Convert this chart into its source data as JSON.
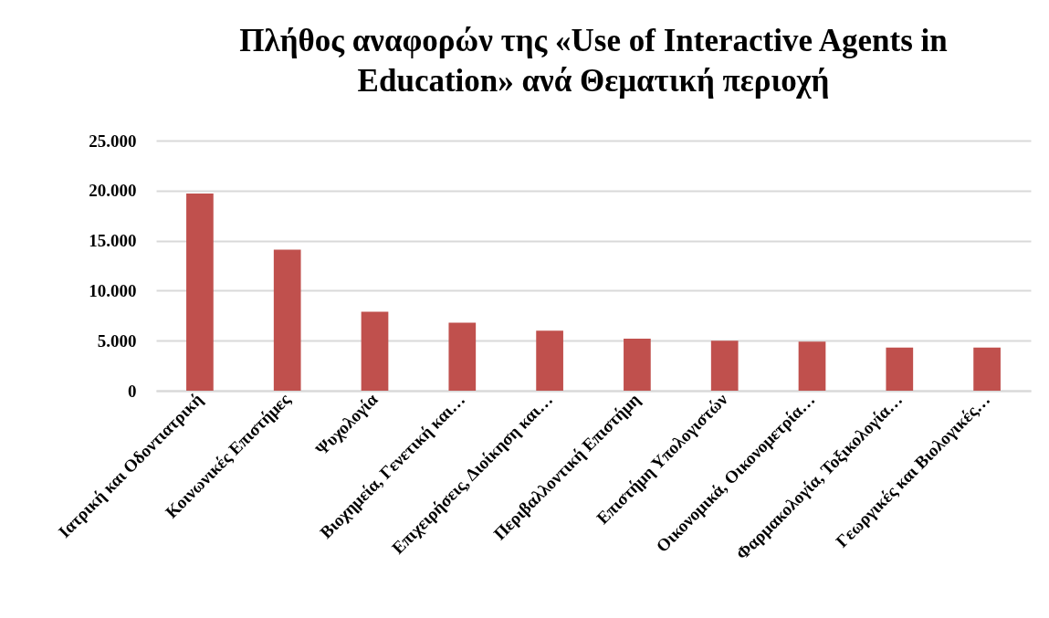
{
  "chart_data": {
    "type": "bar",
    "title": "Πλήθος αναφορών της «Use of Interactive Agents in Education» ανά Θεματική περιοχή",
    "categories": [
      "Ιατρική και Οδοντιατρική",
      "Κοινωνικές Επιστήμες",
      "Ψυχολογία",
      "Βιοχημεία, Γενετική και…",
      "Επιχειρήσεις, Διοίκηση και…",
      "Περιβαλλοντική Επιστήμη",
      "Επιστήμη Υπολογιστών",
      "Οικονομικά, Οικονομετρία…",
      "Φαρμακολογία, Τοξικολογία…",
      "Γεωργικές και Βιολογικές…"
    ],
    "values": [
      19700,
      14100,
      7900,
      6800,
      6000,
      5200,
      5000,
      4900,
      4300,
      4300
    ],
    "color": "#c0504d",
    "ylim": [
      0,
      25000
    ],
    "yticks": [
      {
        "value": 0,
        "label": "0"
      },
      {
        "value": 5000,
        "label": "5.000"
      },
      {
        "value": 10000,
        "label": "10.000"
      },
      {
        "value": 15000,
        "label": "15.000"
      },
      {
        "value": 20000,
        "label": "20.000"
      },
      {
        "value": 25000,
        "label": "25.000"
      }
    ],
    "grid": "y"
  }
}
